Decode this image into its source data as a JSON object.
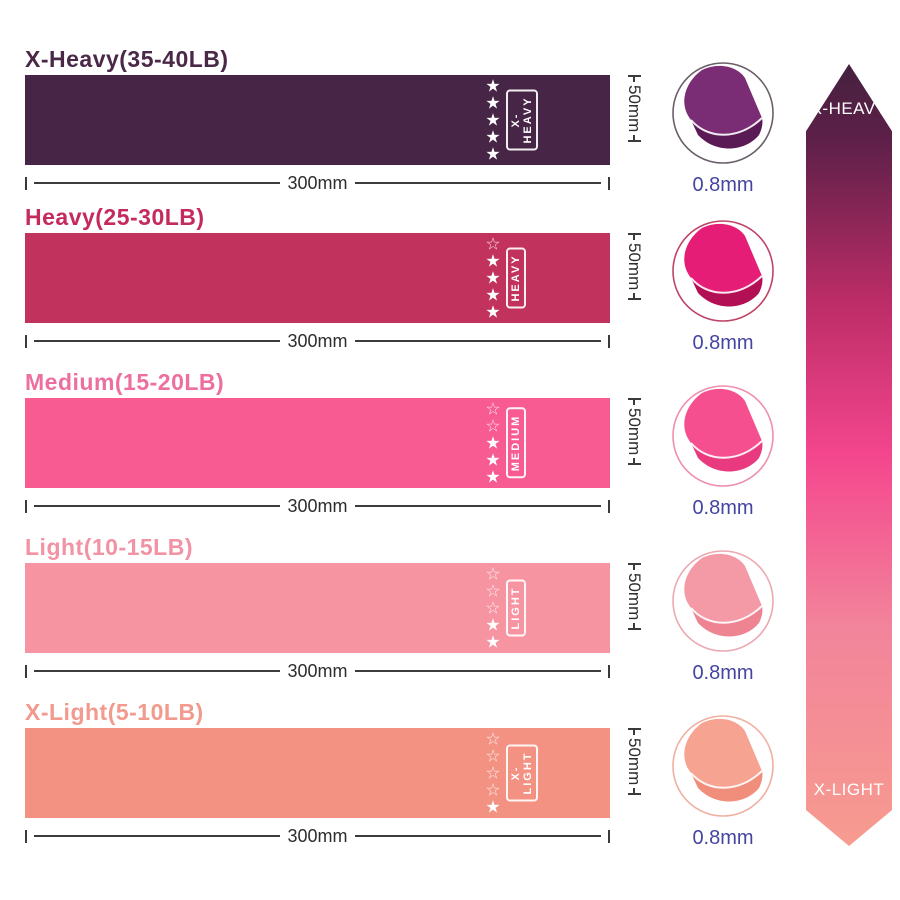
{
  "page": {
    "background": "#ffffff"
  },
  "rows": [
    {
      "title": "X-Heavy(35-40LB)",
      "title_color": "#4b2847",
      "band_color": "#472546",
      "tag": "X-HEAVY",
      "stars_total": 5,
      "stars_filled": 5,
      "width_label": "300mm",
      "height_label": "50mm",
      "thickness_label": "0.8mm",
      "fold_main": "#7a2c74",
      "fold_shade": "#591a55",
      "fold_ring": "#6b5f6a"
    },
    {
      "title": "Heavy(25-30LB)",
      "title_color": "#c42a5c",
      "band_color": "#c1335c",
      "tag": "HEAVY",
      "stars_total": 5,
      "stars_filled": 4,
      "width_label": "300mm",
      "height_label": "50mm",
      "thickness_label": "0.8mm",
      "fold_main": "#e51d77",
      "fold_shade": "#b30f55",
      "fold_ring": "#c04467"
    },
    {
      "title": "Medium(15-20LB)",
      "title_color": "#ec6fa0",
      "band_color": "#f85a92",
      "tag": "MEDIUM",
      "stars_total": 5,
      "stars_filled": 3,
      "width_label": "300mm",
      "height_label": "50mm",
      "thickness_label": "0.8mm",
      "fold_main": "#f64f90",
      "fold_shade": "#e93a80",
      "fold_ring": "#ef8fae"
    },
    {
      "title": "Light(10-15LB)",
      "title_color": "#f193a4",
      "band_color": "#f794a2",
      "tag": "LIGHT",
      "stars_total": 5,
      "stars_filled": 2,
      "width_label": "300mm",
      "height_label": "50mm",
      "thickness_label": "0.8mm",
      "fold_main": "#f49aa6",
      "fold_shade": "#ee8391",
      "fold_ring": "#eba9b1"
    },
    {
      "title": "X-Light(5-10LB)",
      "title_color": "#f29a8d",
      "band_color": "#f39283",
      "tag": "X-LIGHT",
      "stars_total": 5,
      "stars_filled": 1,
      "width_label": "300mm",
      "height_label": "50mm",
      "thickness_label": "0.8mm",
      "fold_main": "#f6a392",
      "fold_shade": "#f08d7b",
      "fold_ring": "#efb0a2"
    }
  ],
  "arrow": {
    "top_label": "X-HEAVY",
    "bottom_label": "X-LIGHT",
    "gradient": [
      "#45213e",
      "#5e2049",
      "#bb2c66",
      "#f4468d",
      "#f2849b",
      "#f79b8f"
    ],
    "gradient_stops": [
      0,
      10,
      30,
      50,
      72,
      100
    ]
  },
  "icons": {
    "star_filled": "★",
    "star_outline": "☆"
  }
}
